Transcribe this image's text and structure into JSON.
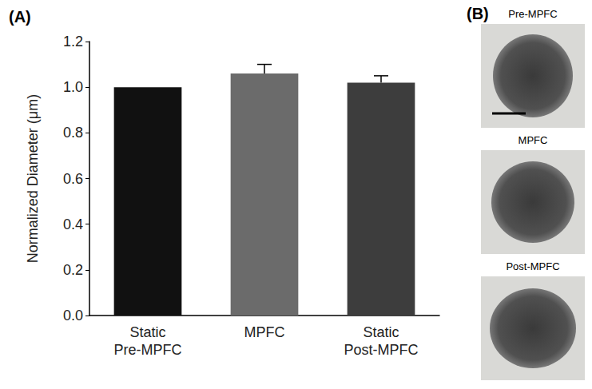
{
  "chart_data": {
    "type": "bar",
    "annotations": [
      "(A)"
    ],
    "y_label": "Normalized Diameter (μm)",
    "categories": [
      "Static\nPre-MPFC",
      "MPFC",
      "Static\nPost-MPFC"
    ],
    "values": [
      1.0,
      1.06,
      1.02
    ],
    "errors": [
      0,
      0.04,
      0.03
    ],
    "colors": [
      "#111111",
      "#6b6b6b",
      "#3d3d3d"
    ],
    "ylim": [
      0,
      1.2
    ],
    "yticks": [
      {
        "value": 0,
        "label": "0.0"
      },
      0.2,
      0.4,
      0.6,
      0.8,
      {
        "value": 1,
        "label": "1.0"
      },
      1.2
    ],
    "grid": false
  },
  "panel_b": {
    "label": "(B)",
    "images": [
      "Pre-MPFC",
      "MPFC",
      "Post-MPFC"
    ]
  }
}
